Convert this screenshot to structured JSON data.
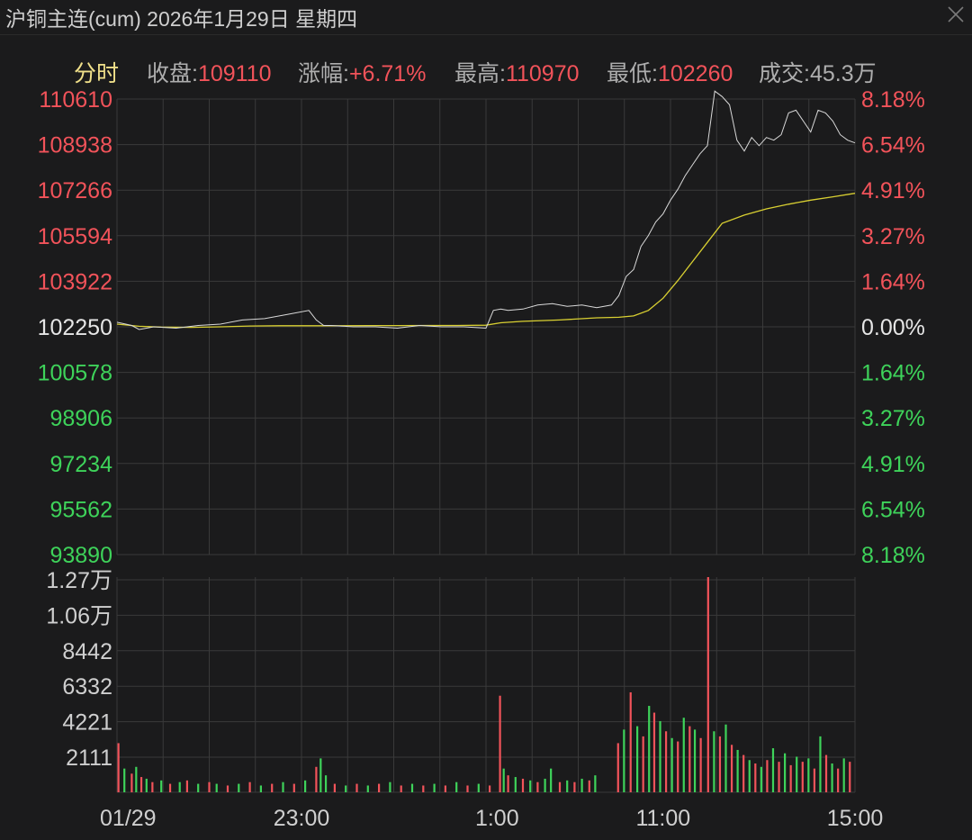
{
  "window": {
    "title": "沪铜主连(cum) 2026年1月29日 星期四",
    "close_icon": "close-icon"
  },
  "info": {
    "tab": "分时",
    "close_label": "收盘:",
    "close_value": "109110",
    "change_label": "涨幅:",
    "change_value": "+6.71%",
    "high_label": "最高:",
    "high_value": "110970",
    "low_label": "最低:",
    "low_value": "102260",
    "volume_label": "成交:",
    "volume_value": "45.3万"
  },
  "colors": {
    "up": "#f2535a",
    "down": "#3ed35a",
    "neutral": "#e6e6e6",
    "price_line": "#d9d9d9",
    "avg_line": "#d9d032",
    "grid": "#3a3a3a",
    "tab": "#f0e08a"
  },
  "chart_data": [
    {
      "type": "line",
      "name": "price-panel",
      "x_ticks": [
        "01/29",
        "23:00",
        "1:00",
        "11:00",
        "15:00"
      ],
      "y_ticks_left": [
        "110610",
        "108938",
        "107266",
        "105594",
        "103922",
        "102250",
        "100578",
        "98906",
        "97234",
        "95562",
        "93890"
      ],
      "y_ticks_right": [
        "8.18%",
        "6.54%",
        "4.91%",
        "3.27%",
        "1.64%",
        "0.00%",
        "1.64%",
        "3.27%",
        "4.91%",
        "6.54%",
        "8.18%"
      ],
      "ylim": [
        93890,
        110610
      ],
      "reference": 102250,
      "x_range": [
        0,
        100
      ],
      "series": [
        {
          "role": "price",
          "x": [
            0,
            2,
            3,
            5,
            8,
            11,
            14,
            17,
            20,
            23,
            26,
            27,
            28,
            29,
            32,
            35,
            38,
            41,
            44,
            47,
            50,
            51,
            52,
            53,
            55,
            57,
            59,
            61,
            63,
            65,
            67,
            68,
            69,
            70,
            71,
            72,
            73,
            74,
            75,
            76,
            77,
            78,
            79,
            80,
            81,
            82,
            83,
            84,
            85,
            86,
            87,
            88,
            89,
            90,
            91,
            92,
            93,
            94,
            95,
            96,
            97,
            98,
            99,
            100
          ],
          "values": [
            102420,
            102300,
            102150,
            102250,
            102200,
            102300,
            102350,
            102500,
            102550,
            102700,
            102850,
            102500,
            102300,
            102300,
            102250,
            102250,
            102200,
            102300,
            102250,
            102250,
            102200,
            102850,
            102900,
            102850,
            102900,
            103050,
            103100,
            103000,
            103050,
            102950,
            103050,
            103400,
            104100,
            104350,
            105200,
            105600,
            106100,
            106400,
            106900,
            107300,
            107800,
            108200,
            108600,
            108900,
            110900,
            110700,
            110400,
            109100,
            108700,
            109200,
            108900,
            109200,
            109100,
            109300,
            110100,
            110200,
            109800,
            109400,
            110200,
            110100,
            109800,
            109300,
            109100,
            109000
          ]
        },
        {
          "role": "average",
          "x": [
            0,
            3,
            6,
            10,
            14,
            18,
            22,
            26,
            30,
            34,
            38,
            42,
            46,
            50,
            52,
            55,
            60,
            65,
            68,
            70,
            72,
            74,
            76,
            78,
            80,
            82,
            85,
            88,
            91,
            94,
            97,
            100
          ],
          "values": [
            102350,
            102270,
            102240,
            102230,
            102250,
            102280,
            102290,
            102290,
            102290,
            102295,
            102295,
            102300,
            102300,
            102310,
            102400,
            102450,
            102500,
            102580,
            102600,
            102650,
            102850,
            103300,
            103950,
            104650,
            105350,
            106050,
            106350,
            106580,
            106750,
            106900,
            107020,
            107150
          ]
        }
      ]
    },
    {
      "type": "bar",
      "name": "volume-panel",
      "y_ticks": [
        "1.27万",
        "1.06万",
        "8442",
        "6332",
        "4221",
        "2111"
      ],
      "ylim": [
        0,
        12700
      ],
      "x_range": [
        0,
        100
      ],
      "bars": [
        {
          "x": 0.2,
          "v": 2900,
          "c": "up"
        },
        {
          "x": 1.0,
          "v": 1400,
          "c": "down"
        },
        {
          "x": 2.0,
          "v": 1100,
          "c": "up"
        },
        {
          "x": 2.6,
          "v": 1500,
          "c": "down"
        },
        {
          "x": 3.3,
          "v": 900,
          "c": "up"
        },
        {
          "x": 4.0,
          "v": 800,
          "c": "down"
        },
        {
          "x": 4.8,
          "v": 600,
          "c": "up"
        },
        {
          "x": 6.0,
          "v": 700,
          "c": "down"
        },
        {
          "x": 7.2,
          "v": 500,
          "c": "up"
        },
        {
          "x": 8.5,
          "v": 600,
          "c": "down"
        },
        {
          "x": 9.5,
          "v": 700,
          "c": "up"
        },
        {
          "x": 11.0,
          "v": 500,
          "c": "down"
        },
        {
          "x": 12.5,
          "v": 600,
          "c": "up"
        },
        {
          "x": 13.5,
          "v": 500,
          "c": "down"
        },
        {
          "x": 15.0,
          "v": 400,
          "c": "up"
        },
        {
          "x": 16.5,
          "v": 500,
          "c": "down"
        },
        {
          "x": 18.0,
          "v": 600,
          "c": "up"
        },
        {
          "x": 19.5,
          "v": 400,
          "c": "down"
        },
        {
          "x": 21.0,
          "v": 500,
          "c": "up"
        },
        {
          "x": 22.5,
          "v": 600,
          "c": "down"
        },
        {
          "x": 24.0,
          "v": 500,
          "c": "up"
        },
        {
          "x": 25.5,
          "v": 700,
          "c": "down"
        },
        {
          "x": 27.0,
          "v": 1500,
          "c": "up"
        },
        {
          "x": 27.6,
          "v": 2000,
          "c": "down"
        },
        {
          "x": 28.3,
          "v": 1000,
          "c": "down"
        },
        {
          "x": 29.5,
          "v": 500,
          "c": "up"
        },
        {
          "x": 31.0,
          "v": 400,
          "c": "down"
        },
        {
          "x": 32.5,
          "v": 500,
          "c": "up"
        },
        {
          "x": 34.0,
          "v": 400,
          "c": "down"
        },
        {
          "x": 35.5,
          "v": 500,
          "c": "up"
        },
        {
          "x": 37.0,
          "v": 600,
          "c": "down"
        },
        {
          "x": 38.5,
          "v": 400,
          "c": "up"
        },
        {
          "x": 40.0,
          "v": 500,
          "c": "down"
        },
        {
          "x": 41.5,
          "v": 400,
          "c": "up"
        },
        {
          "x": 43.0,
          "v": 500,
          "c": "down"
        },
        {
          "x": 44.5,
          "v": 400,
          "c": "up"
        },
        {
          "x": 46.0,
          "v": 600,
          "c": "down"
        },
        {
          "x": 47.5,
          "v": 400,
          "c": "up"
        },
        {
          "x": 49.0,
          "v": 500,
          "c": "down"
        },
        {
          "x": 50.5,
          "v": 400,
          "c": "up"
        },
        {
          "x": 51.9,
          "v": 5700,
          "c": "up"
        },
        {
          "x": 52.4,
          "v": 1400,
          "c": "down"
        },
        {
          "x": 53.0,
          "v": 1000,
          "c": "up"
        },
        {
          "x": 54.0,
          "v": 900,
          "c": "down"
        },
        {
          "x": 55.0,
          "v": 800,
          "c": "up"
        },
        {
          "x": 56.0,
          "v": 700,
          "c": "down"
        },
        {
          "x": 57.0,
          "v": 600,
          "c": "up"
        },
        {
          "x": 58.0,
          "v": 800,
          "c": "down"
        },
        {
          "x": 58.8,
          "v": 1400,
          "c": "down"
        },
        {
          "x": 60.0,
          "v": 600,
          "c": "up"
        },
        {
          "x": 61.0,
          "v": 700,
          "c": "down"
        },
        {
          "x": 62.0,
          "v": 600,
          "c": "up"
        },
        {
          "x": 63.0,
          "v": 800,
          "c": "down"
        },
        {
          "x": 64.0,
          "v": 700,
          "c": "up"
        },
        {
          "x": 64.8,
          "v": 1000,
          "c": "down"
        },
        {
          "x": 67.9,
          "v": 2900,
          "c": "up"
        },
        {
          "x": 68.7,
          "v": 3700,
          "c": "down"
        },
        {
          "x": 69.6,
          "v": 5900,
          "c": "up"
        },
        {
          "x": 70.5,
          "v": 3900,
          "c": "down"
        },
        {
          "x": 71.3,
          "v": 3300,
          "c": "up"
        },
        {
          "x": 72.1,
          "v": 5100,
          "c": "down"
        },
        {
          "x": 72.8,
          "v": 4700,
          "c": "up"
        },
        {
          "x": 73.6,
          "v": 4200,
          "c": "down"
        },
        {
          "x": 74.4,
          "v": 3600,
          "c": "up"
        },
        {
          "x": 75.2,
          "v": 3200,
          "c": "down"
        },
        {
          "x": 76.0,
          "v": 3000,
          "c": "up"
        },
        {
          "x": 76.8,
          "v": 4400,
          "c": "down"
        },
        {
          "x": 77.6,
          "v": 3900,
          "c": "up"
        },
        {
          "x": 78.3,
          "v": 3700,
          "c": "down"
        },
        {
          "x": 79.1,
          "v": 3200,
          "c": "up"
        },
        {
          "x": 80.1,
          "v": 12700,
          "c": "up"
        },
        {
          "x": 80.9,
          "v": 3600,
          "c": "down"
        },
        {
          "x": 81.7,
          "v": 3300,
          "c": "up"
        },
        {
          "x": 82.5,
          "v": 4000,
          "c": "down"
        },
        {
          "x": 83.3,
          "v": 2800,
          "c": "up"
        },
        {
          "x": 84.1,
          "v": 2500,
          "c": "down"
        },
        {
          "x": 84.9,
          "v": 2200,
          "c": "up"
        },
        {
          "x": 85.7,
          "v": 1900,
          "c": "down"
        },
        {
          "x": 86.5,
          "v": 1700,
          "c": "up"
        },
        {
          "x": 87.3,
          "v": 1500,
          "c": "down"
        },
        {
          "x": 88.1,
          "v": 1900,
          "c": "up"
        },
        {
          "x": 88.9,
          "v": 2600,
          "c": "down"
        },
        {
          "x": 89.7,
          "v": 1800,
          "c": "up"
        },
        {
          "x": 90.5,
          "v": 2300,
          "c": "down"
        },
        {
          "x": 91.3,
          "v": 1600,
          "c": "up"
        },
        {
          "x": 92.1,
          "v": 2100,
          "c": "down"
        },
        {
          "x": 92.9,
          "v": 1800,
          "c": "up"
        },
        {
          "x": 93.7,
          "v": 2000,
          "c": "down"
        },
        {
          "x": 94.5,
          "v": 1400,
          "c": "up"
        },
        {
          "x": 95.3,
          "v": 3300,
          "c": "down"
        },
        {
          "x": 96.1,
          "v": 2200,
          "c": "up"
        },
        {
          "x": 96.9,
          "v": 1700,
          "c": "down"
        },
        {
          "x": 97.7,
          "v": 1400,
          "c": "up"
        },
        {
          "x": 98.5,
          "v": 2000,
          "c": "down"
        },
        {
          "x": 99.3,
          "v": 1800,
          "c": "up"
        }
      ]
    }
  ]
}
